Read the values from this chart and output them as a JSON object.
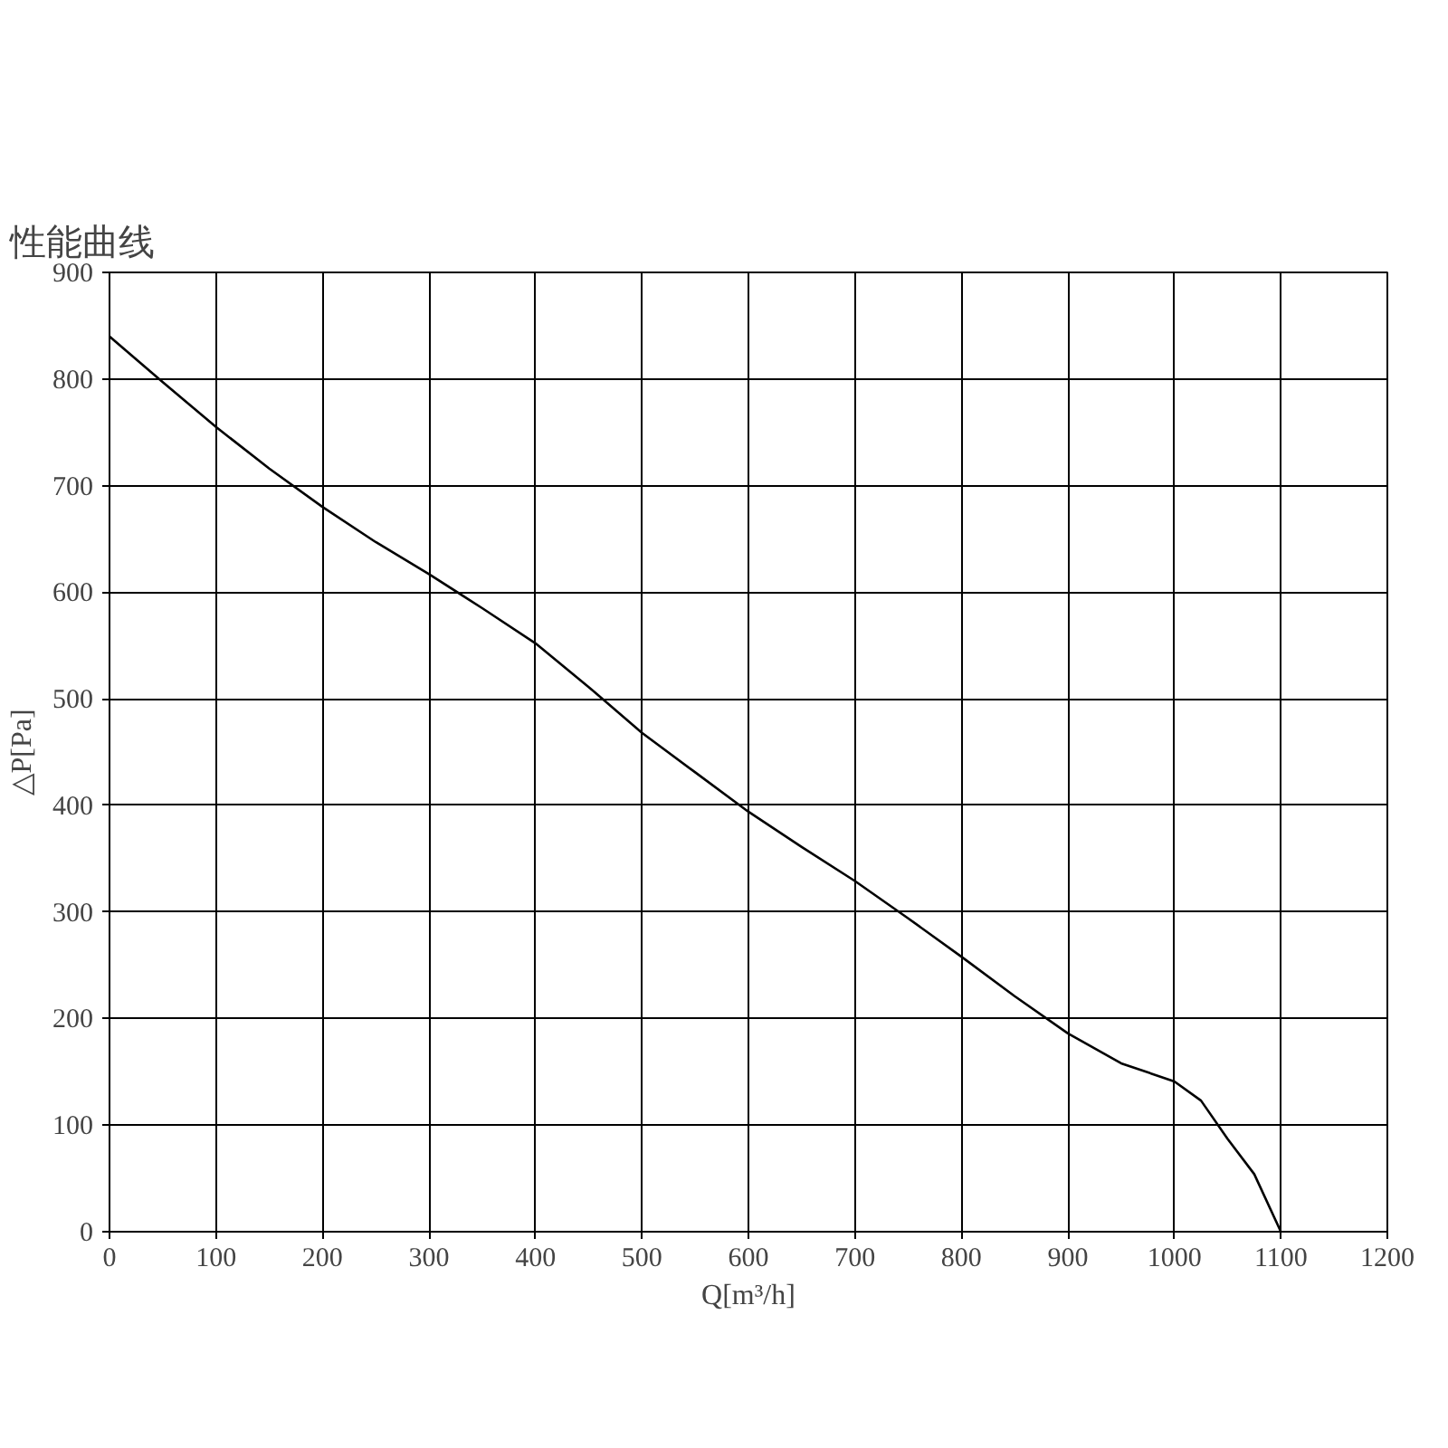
{
  "chart_data": {
    "type": "line",
    "title": "性能曲线",
    "xlabel": "Q[m³/h]",
    "ylabel": "△P[Pa]",
    "x": [
      0,
      50,
      100,
      150,
      200,
      250,
      300,
      350,
      400,
      450,
      500,
      550,
      600,
      650,
      700,
      750,
      800,
      850,
      900,
      950,
      1000,
      1025,
      1050,
      1075,
      1100
    ],
    "series": [
      {
        "color": "#000000",
        "values": [
          840,
          797,
          755,
          716,
          680,
          647,
          617,
          585,
          552,
          511,
          468,
          431,
          394,
          361,
          329,
          294,
          258,
          221,
          186,
          158,
          141,
          123,
          87,
          54,
          0
        ]
      }
    ],
    "xlim": [
      0,
      1200
    ],
    "xticks": [
      0,
      100,
      200,
      300,
      400,
      500,
      600,
      700,
      800,
      900,
      1000,
      1100,
      1200
    ],
    "ylim": [
      0,
      900
    ],
    "yticks": [
      0,
      100,
      200,
      300,
      400,
      500,
      600,
      700,
      800,
      900
    ],
    "grid": true,
    "line_style": "solid"
  }
}
